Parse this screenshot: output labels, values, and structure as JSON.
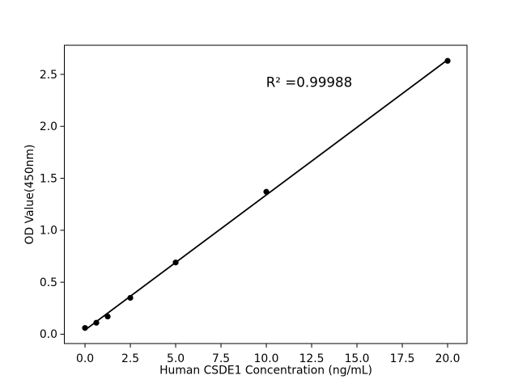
{
  "figure": {
    "background": "#ffffff"
  },
  "chart_data": {
    "type": "scatter",
    "title": "",
    "xlabel": "Human CSDE1 Concentration (ng/mL)",
    "ylabel": "OD Value(450nm)",
    "annotation": "R² =0.99988",
    "r_squared": 0.99988,
    "x": [
      0,
      0.625,
      1.25,
      2.5,
      5,
      10,
      20
    ],
    "y": [
      0.06,
      0.11,
      0.17,
      0.35,
      0.69,
      1.37,
      2.63
    ],
    "trendline": {
      "x0": 0,
      "y0": 0.04,
      "x1": 20,
      "y1": 2.64
    },
    "xtick_labels": [
      "0.0",
      "2.5",
      "5.0",
      "7.5",
      "10.0",
      "12.5",
      "15.0",
      "17.5",
      "20.0"
    ],
    "ytick_labels": [
      "0.0",
      "0.5",
      "1.0",
      "1.5",
      "2.0",
      "2.5"
    ],
    "xlim": [
      -1.14,
      21.07
    ],
    "ylim": [
      -0.09,
      2.78
    ],
    "grid": false,
    "legend": "none",
    "point_color": "#000000",
    "line_color": "#000000",
    "axis_color": "#000000",
    "background": "#ffffff"
  }
}
